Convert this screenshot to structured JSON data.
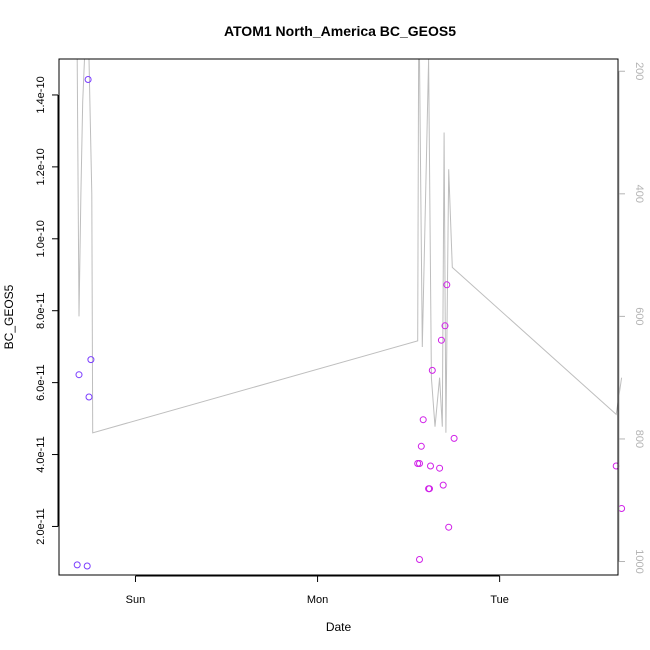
{
  "chart_data": {
    "type": "scatter",
    "title": "ATOM1 North_America BC_GEOS5",
    "xlabel": "Date",
    "ylabel": "BC_GEOS5",
    "x_axis": {
      "unit": "days",
      "range": [
        -0.42,
        2.65
      ],
      "ticks": [
        {
          "value": 0,
          "label": "Sun"
        },
        {
          "value": 1,
          "label": "Mon"
        },
        {
          "value": 2,
          "label": "Tue"
        }
      ]
    },
    "y_axis_left": {
      "range": [
        6.5e-12,
        1.5e-10
      ],
      "ticks": [
        {
          "value": 2e-11,
          "label": "2.0e-11"
        },
        {
          "value": 4e-11,
          "label": "4.0e-11"
        },
        {
          "value": 6e-11,
          "label": "6.0e-11"
        },
        {
          "value": 8e-11,
          "label": "8.0e-11"
        },
        {
          "value": 1e-10,
          "label": "1.0e-10"
        },
        {
          "value": 1.2e-10,
          "label": "1.2e-10"
        },
        {
          "value": 1.4e-10,
          "label": "1.4e-10"
        }
      ]
    },
    "y_axis_right": {
      "range": [
        1022,
        180
      ],
      "color": "#b4b4b4",
      "ticks": [
        {
          "value": 200,
          "label": "200"
        },
        {
          "value": 400,
          "label": "400"
        },
        {
          "value": 600,
          "label": "600"
        },
        {
          "value": 800,
          "label": "800"
        },
        {
          "value": 1000,
          "label": "1000"
        }
      ]
    },
    "points": [
      {
        "x": -0.32,
        "y": 9.3e-12,
        "color": "#7a3cff"
      },
      {
        "x": -0.31,
        "y": 6.22e-11,
        "color": "#7a3cff"
      },
      {
        "x": -0.265,
        "y": 9e-12,
        "color": "#7a3cff"
      },
      {
        "x": -0.26,
        "y": 1.443e-10,
        "color": "#7a3cff"
      },
      {
        "x": -0.255,
        "y": 5.6e-11,
        "color": "#7a3cff"
      },
      {
        "x": -0.245,
        "y": 6.64e-11,
        "color": "#7a3cff"
      },
      {
        "x": 1.55,
        "y": 3.75e-11,
        "color": "#d020e8"
      },
      {
        "x": 1.56,
        "y": 3.75e-11,
        "color": "#d020e8"
      },
      {
        "x": 1.56,
        "y": 1.08e-11,
        "color": "#d020e8"
      },
      {
        "x": 1.57,
        "y": 4.23e-11,
        "color": "#d020e8"
      },
      {
        "x": 1.58,
        "y": 4.97e-11,
        "color": "#d020e8"
      },
      {
        "x": 1.61,
        "y": 3.05e-11,
        "color": "#d020e8"
      },
      {
        "x": 1.615,
        "y": 3.05e-11,
        "color": "#d020e8"
      },
      {
        "x": 1.62,
        "y": 3.68e-11,
        "color": "#d020e8"
      },
      {
        "x": 1.63,
        "y": 6.34e-11,
        "color": "#d020e8"
      },
      {
        "x": 1.67,
        "y": 3.62e-11,
        "color": "#d020e8"
      },
      {
        "x": 1.68,
        "y": 7.18e-11,
        "color": "#d020e8"
      },
      {
        "x": 1.69,
        "y": 3.15e-11,
        "color": "#d020e8"
      },
      {
        "x": 1.7,
        "y": 7.58e-11,
        "color": "#d020e8"
      },
      {
        "x": 1.71,
        "y": 8.72e-11,
        "color": "#d020e8"
      },
      {
        "x": 1.72,
        "y": 1.98e-11,
        "color": "#d020e8"
      },
      {
        "x": 1.75,
        "y": 4.45e-11,
        "color": "#d020e8"
      },
      {
        "x": 2.64,
        "y": 3.68e-11,
        "color": "#d020e8"
      },
      {
        "x": 2.67,
        "y": 2.5e-11,
        "color": "#d020e8"
      }
    ],
    "line": {
      "color": "#bebebe",
      "axis": "right",
      "points": [
        {
          "x": -0.32,
          "y": 180
        },
        {
          "x": -0.31,
          "y": 600
        },
        {
          "x": -0.3,
          "y": 400
        },
        {
          "x": -0.29,
          "y": 250
        },
        {
          "x": -0.28,
          "y": 180
        },
        {
          "x": -0.265,
          "y": 180
        },
        {
          "x": -0.255,
          "y": 180
        },
        {
          "x": -0.24,
          "y": 400
        },
        {
          "x": -0.235,
          "y": 790
        },
        {
          "x": 1.55,
          "y": 640
        },
        {
          "x": 1.555,
          "y": 180
        },
        {
          "x": 1.56,
          "y": 180
        },
        {
          "x": 1.575,
          "y": 650
        },
        {
          "x": 1.61,
          "y": 180
        },
        {
          "x": 1.625,
          "y": 700
        },
        {
          "x": 1.645,
          "y": 780
        },
        {
          "x": 1.67,
          "y": 700
        },
        {
          "x": 1.685,
          "y": 780
        },
        {
          "x": 1.695,
          "y": 300
        },
        {
          "x": 1.705,
          "y": 790
        },
        {
          "x": 1.72,
          "y": 360
        },
        {
          "x": 1.74,
          "y": 520
        },
        {
          "x": 2.64,
          "y": 760
        },
        {
          "x": 2.67,
          "y": 700
        }
      ]
    }
  }
}
